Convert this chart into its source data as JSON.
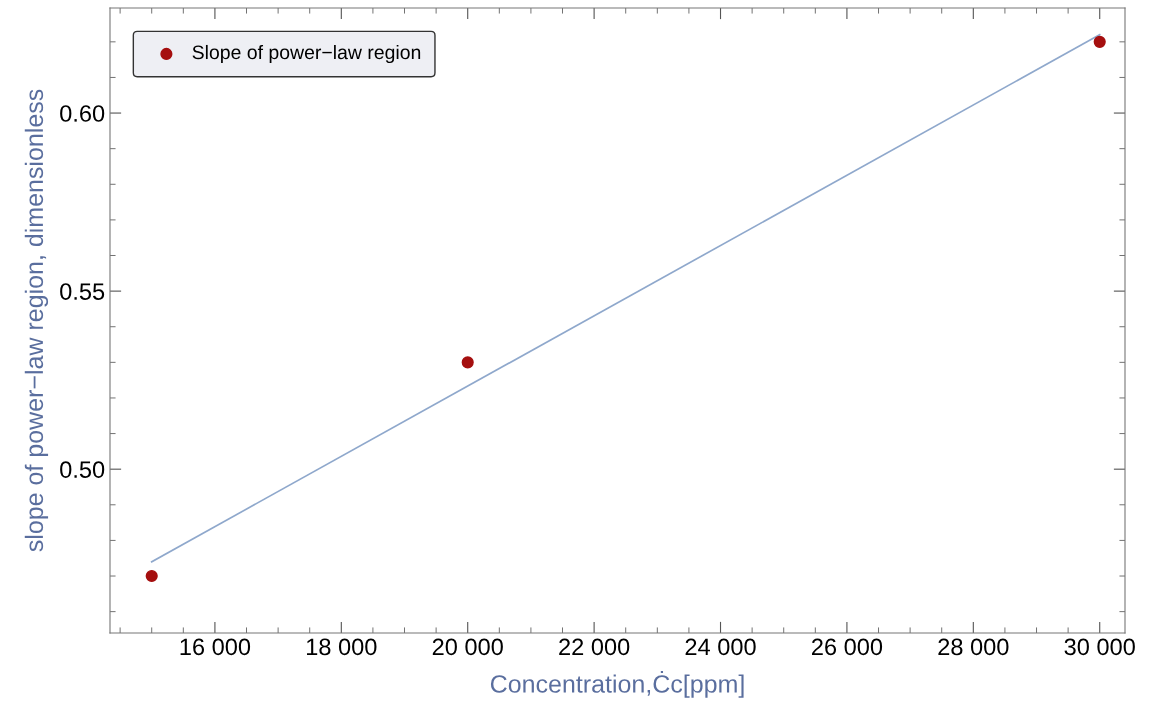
{
  "chart_data": {
    "type": "scatter",
    "xlabel": "Concentration,Ċc[ppm]",
    "ylabel": "slope of power−law region, dimensionless",
    "series": [
      {
        "name": "Slope of power−law region",
        "color": "#a50f0f",
        "x": [
          15000,
          20000,
          30000
        ],
        "values": [
          0.47,
          0.53,
          0.62
        ],
        "marker": "circle"
      },
      {
        "type": "line",
        "color": "#8fa8cc",
        "x": [
          15000,
          30000
        ],
        "values": [
          0.474,
          0.622
        ],
        "line_style": "solid"
      }
    ],
    "xlim": [
      14340,
      30400
    ],
    "ylim": [
      0.454,
      0.6295
    ],
    "xticks": [
      {
        "value": 16000,
        "label": "16 000"
      },
      {
        "value": 18000,
        "label": "18 000"
      },
      {
        "value": 20000,
        "label": "20 000"
      },
      {
        "value": 22000,
        "label": "22 000"
      },
      {
        "value": 24000,
        "label": "24 000"
      },
      {
        "value": 26000,
        "label": "26 000"
      },
      {
        "value": 28000,
        "label": "28 000"
      },
      {
        "value": 30000,
        "label": "30 000"
      }
    ],
    "yticks": [
      {
        "value": 0.5,
        "label": "0.50"
      },
      {
        "value": 0.55,
        "label": "0.55"
      },
      {
        "value": 0.6,
        "label": "0.60"
      }
    ],
    "grid": false,
    "legend": "top left"
  }
}
